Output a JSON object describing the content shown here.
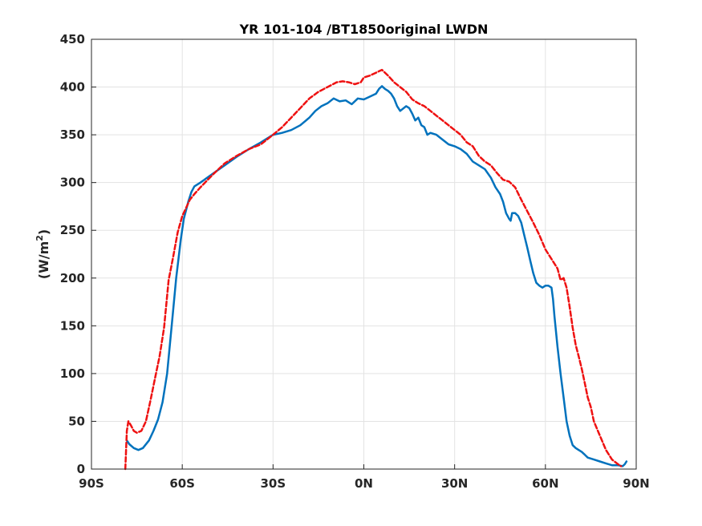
{
  "chart_data": {
    "type": "line",
    "title": "YR 101-104 /BT1850original LWDN",
    "xlabel": "",
    "ylabel": "(W/m",
    "ylabel_superscript": "2",
    "ylabel_suffix": ")",
    "xlim": [
      -90,
      90
    ],
    "ylim": [
      0,
      450
    ],
    "xticks": [
      -90,
      -60,
      -30,
      0,
      30,
      60,
      90
    ],
    "xtick_labels": [
      "90S",
      "60S",
      "30S",
      "0N",
      "30N",
      "60N",
      "90N"
    ],
    "yticks": [
      0,
      50,
      100,
      150,
      200,
      250,
      300,
      350,
      400,
      450
    ],
    "ytick_labels": [
      "0",
      "50",
      "100",
      "150",
      "200",
      "250",
      "300",
      "350",
      "400",
      "450"
    ],
    "grid": true,
    "series": [
      {
        "color": "#0072BD",
        "style": "solid",
        "x": [
          -78.3,
          -77.5,
          -76,
          -74.5,
          -73,
          -71,
          -69.5,
          -68,
          -66.5,
          -65,
          -63.5,
          -62,
          -60.5,
          -59.5,
          -58,
          -57,
          -56,
          -54,
          -50,
          -46,
          -42,
          -38,
          -34,
          -30,
          -27,
          -24,
          -21,
          -18,
          -16,
          -14,
          -12,
          -10,
          -8,
          -6,
          -4,
          -2,
          0,
          2,
          4,
          5,
          6,
          7,
          8,
          9,
          10,
          11,
          12,
          14,
          15,
          16,
          17,
          18,
          19,
          20,
          21,
          22,
          24,
          26,
          28,
          30,
          32,
          34,
          36,
          38,
          40,
          42,
          43.5,
          45,
          46,
          47,
          48,
          48.5,
          49,
          50,
          51,
          52,
          53,
          54,
          55,
          56,
          57,
          58,
          59,
          60,
          61,
          62,
          62.5,
          63,
          64,
          65,
          66,
          67,
          68,
          69,
          70,
          71,
          72,
          73,
          74,
          76,
          78,
          80,
          82,
          84,
          85.5,
          86.2,
          86.8
        ],
        "y": [
          30,
          26,
          22,
          20,
          22,
          30,
          40,
          52,
          70,
          100,
          150,
          200,
          240,
          262,
          280,
          290,
          296,
          300,
          309,
          318,
          327,
          335,
          342,
          350,
          352,
          355,
          360,
          368,
          375,
          380,
          383,
          388,
          385,
          386,
          382,
          388,
          387,
          390,
          393,
          398,
          401,
          398,
          396,
          393,
          388,
          380,
          375,
          380,
          378,
          372,
          365,
          368,
          360,
          358,
          350,
          352,
          350,
          345,
          340,
          338,
          335,
          330,
          322,
          318,
          314,
          305,
          295,
          288,
          280,
          268,
          262,
          260,
          268,
          268,
          265,
          258,
          245,
          232,
          218,
          205,
          195,
          192,
          190,
          192,
          192,
          190,
          178,
          160,
          128,
          100,
          75,
          50,
          35,
          25,
          22,
          20,
          18,
          15,
          12,
          10,
          8,
          6,
          4,
          4,
          3,
          5,
          8
        ]
      },
      {
        "color": "#EE1111",
        "style": "dashed",
        "x": [
          -78.8,
          -78.3,
          -77.8,
          -77,
          -76,
          -75,
          -73.5,
          -72,
          -70.5,
          -69,
          -67.5,
          -66,
          -64.5,
          -63,
          -61.5,
          -60,
          -58.5,
          -57.5,
          -56,
          -54,
          -50,
          -46,
          -42,
          -38,
          -34,
          -30,
          -27,
          -24,
          -21,
          -18,
          -15,
          -12,
          -9,
          -7,
          -5,
          -3,
          -1,
          0,
          2,
          4,
          6,
          8,
          10,
          12,
          14,
          16,
          18,
          20,
          22,
          24,
          26,
          28,
          30,
          32,
          34,
          36,
          38,
          40,
          42,
          44,
          46,
          48,
          50,
          52,
          54,
          56,
          58,
          60,
          62,
          64,
          65,
          66,
          67,
          68,
          69,
          70,
          71,
          72,
          73,
          74,
          75,
          76,
          78,
          80,
          82,
          84,
          85
        ],
        "y": [
          0,
          40,
          50,
          46,
          40,
          38,
          40,
          50,
          72,
          95,
          118,
          148,
          198,
          222,
          248,
          265,
          275,
          282,
          288,
          295,
          308,
          320,
          328,
          335,
          340,
          350,
          358,
          368,
          378,
          388,
          395,
          400,
          405,
          406,
          405,
          403,
          405,
          410,
          412,
          415,
          418,
          412,
          405,
          400,
          395,
          387,
          383,
          380,
          375,
          370,
          365,
          360,
          355,
          350,
          342,
          338,
          328,
          322,
          318,
          310,
          303,
          301,
          295,
          282,
          270,
          258,
          245,
          230,
          220,
          210,
          198,
          200,
          190,
          170,
          148,
          130,
          118,
          105,
          90,
          75,
          65,
          50,
          35,
          20,
          10,
          5,
          3
        ]
      }
    ]
  }
}
